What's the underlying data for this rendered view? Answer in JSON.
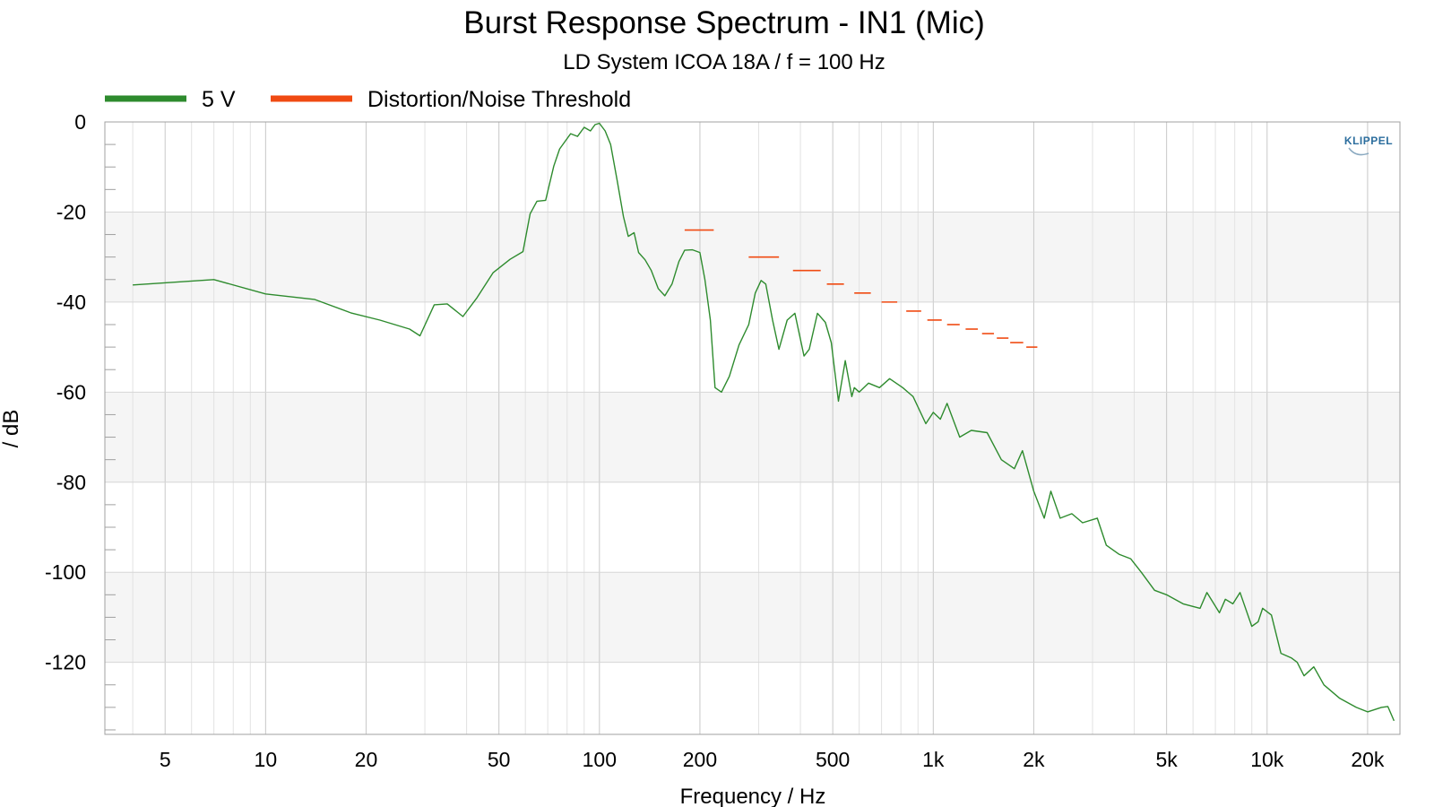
{
  "chart_data": {
    "type": "line",
    "title": "Burst Response Spectrum - IN1 (Mic)",
    "subtitle": "LD System ICOA 18A / f = 100 Hz",
    "xlabel": "Frequency / Hz",
    "ylabel": "/ dB",
    "x_scale": "log",
    "xlim": [
      3.3,
      25000
    ],
    "ylim": [
      -136,
      0
    ],
    "grid": true,
    "legend_position": "top-left",
    "x_ticks": [
      5,
      10,
      20,
      50,
      100,
      200,
      500,
      1000,
      2000,
      5000,
      10000,
      20000
    ],
    "x_tick_labels": [
      "5",
      "10",
      "20",
      "50",
      "100",
      "200",
      "500",
      "1k",
      "2k",
      "5k",
      "10k",
      "20k"
    ],
    "y_ticks": [
      0,
      -20,
      -40,
      -60,
      -80,
      -100,
      -120
    ],
    "y_tick_labels": [
      "0",
      "-20",
      "-40",
      "-60",
      "-80",
      "-100",
      "-120"
    ],
    "watermark": "KLIPPEL",
    "series": [
      {
        "name": "5 V",
        "color": "#2e8b2e",
        "x": [
          4,
          7,
          10,
          14,
          18,
          22,
          27,
          29,
          32,
          35,
          39,
          43,
          48,
          54,
          59,
          62,
          65,
          69,
          73,
          76,
          82,
          86,
          90,
          94,
          97,
          100,
          104,
          108,
          113,
          118,
          122,
          127,
          131,
          137,
          143,
          150,
          157,
          165,
          173,
          180,
          190,
          200,
          207,
          215,
          222,
          232,
          245,
          262,
          280,
          293,
          305,
          315,
          330,
          345,
          365,
          385,
          410,
          425,
          450,
          475,
          495,
          520,
          545,
          570,
          580,
          600,
          640,
          690,
          740,
          810,
          870,
          950,
          1000,
          1050,
          1100,
          1200,
          1300,
          1450,
          1600,
          1750,
          1850,
          2000,
          2150,
          2250,
          2400,
          2600,
          2800,
          3100,
          3300,
          3600,
          3900,
          4200,
          4600,
          5000,
          5600,
          6300,
          6600,
          7200,
          7500,
          7900,
          8300,
          9000,
          9400,
          9700,
          10300,
          11000,
          11800,
          12300,
          12900,
          13800,
          14800,
          16500,
          18500,
          20000,
          22000,
          23000,
          24000
        ],
        "y": [
          -36.2,
          -35,
          -38.2,
          -39.4,
          -42.4,
          -44,
          -46,
          -47.5,
          -40.6,
          -40.4,
          -43.2,
          -39,
          -33.5,
          -30.5,
          -28.8,
          -20.4,
          -17.6,
          -17.4,
          -9.8,
          -6,
          -2.6,
          -3.2,
          -1.2,
          -2,
          -0.6,
          -0.3,
          -2,
          -5,
          -13,
          -21,
          -25.4,
          -24.6,
          -29,
          -30.6,
          -33,
          -37,
          -38.6,
          -36,
          -31,
          -28.5,
          -28.4,
          -29,
          -35,
          -44,
          -59,
          -60,
          -56.5,
          -49.5,
          -45,
          -38,
          -35.2,
          -36,
          -44,
          -50.5,
          -44,
          -42.5,
          -52,
          -50.5,
          -42.5,
          -44.5,
          -49,
          -62,
          -53,
          -61,
          -59,
          -60,
          -58,
          -59,
          -57,
          -59,
          -61,
          -67,
          -64.5,
          -66,
          -62.5,
          -70,
          -68.5,
          -69,
          -75,
          -77,
          -73,
          -82,
          -88,
          -82,
          -88,
          -87,
          -89,
          -88,
          -94,
          -96,
          -97,
          -100,
          -104,
          -105,
          -107,
          -108,
          -104.5,
          -109,
          -106,
          -107,
          -104.5,
          -112,
          -111,
          -108,
          -109.5,
          -118,
          -119,
          -120,
          -123,
          -121,
          -125,
          -128,
          -130,
          -131,
          -130,
          -129.8,
          -133
        ]
      },
      {
        "name": "Distortion/Noise Threshold",
        "color": "#f04a12",
        "segments": [
          {
            "x": [
              180,
              220
            ],
            "y": -24
          },
          {
            "x": [
              280,
              345
            ],
            "y": -30
          },
          {
            "x": [
              380,
              460
            ],
            "y": -33
          },
          {
            "x": [
              480,
              540
            ],
            "y": -36
          },
          {
            "x": [
              580,
              650
            ],
            "y": -38
          },
          {
            "x": [
              700,
              780
            ],
            "y": -40
          },
          {
            "x": [
              830,
              920
            ],
            "y": -42
          },
          {
            "x": [
              960,
              1060
            ],
            "y": -44
          },
          {
            "x": [
              1100,
              1200
            ],
            "y": -45
          },
          {
            "x": [
              1250,
              1360
            ],
            "y": -46
          },
          {
            "x": [
              1400,
              1520
            ],
            "y": -47
          },
          {
            "x": [
              1550,
              1680
            ],
            "y": -48
          },
          {
            "x": [
              1700,
              1860
            ],
            "y": -49
          },
          {
            "x": [
              1900,
              2050
            ],
            "y": -50
          }
        ]
      }
    ]
  }
}
